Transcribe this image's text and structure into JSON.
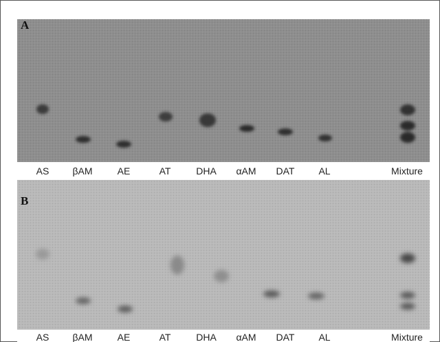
{
  "panels": [
    {
      "label": "A",
      "lanes": [
        "AS",
        "βAM",
        "AE",
        "AT",
        "DHA",
        "αAM",
        "DAT",
        "AL",
        "Mixture"
      ]
    },
    {
      "label": "B",
      "lanes": [
        "AS",
        "βAM",
        "AE",
        "AT",
        "DHA",
        "αAM",
        "DAT",
        "AL",
        "Mixture"
      ]
    }
  ]
}
